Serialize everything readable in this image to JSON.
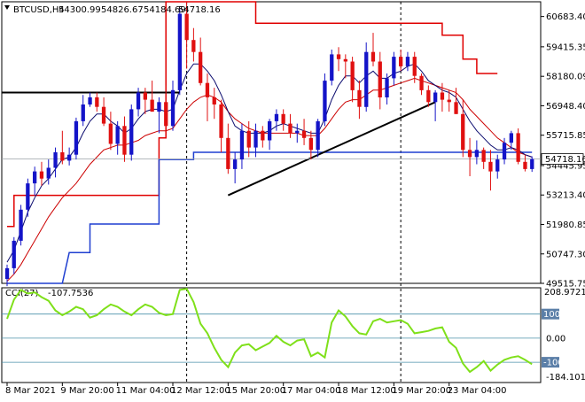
{
  "header": {
    "symbol_label": "BTCUSD,H4",
    "ohlc": [
      "54300.99",
      "54826.67",
      "54184.69",
      "54718.16"
    ]
  },
  "colors": {
    "bull": "#1414c8",
    "bear": "#e01010",
    "ma_fast": "#0b0b6e",
    "ma_slow": "#cc0000",
    "envelope": "#e00000",
    "donchian_low": "#1f3fd0",
    "trendline": "#000000",
    "cci": "#7fe01a",
    "level_line": "#4a90a8",
    "price_tag_bg": "#ffffff"
  },
  "chart_data": {
    "type": "candlestick",
    "title": "",
    "ylim": [
      49515.75,
      61300
    ],
    "y_ticks": [
      "60683.40",
      "59415.35",
      "58180.09",
      "56948.40",
      "55715.85",
      "54445.95",
      "53213.40",
      "51980.85",
      "50747.30",
      "49515.75"
    ],
    "y_tick_values": [
      60683.4,
      59415.35,
      58180.09,
      56948.4,
      55715.85,
      54445.95,
      53213.4,
      51980.85,
      50747.3,
      49515.75
    ],
    "current_price_label": "54718.16",
    "current_price": 54718.16,
    "x_labels": [
      "8 Mar 2021",
      "9 Mar 20:00",
      "11 Mar 04:00",
      "12 Mar 12:00",
      "15 Mar 20:00",
      "17 Mar 04:00",
      "18 Mar 12:00",
      "19 Mar 20:00",
      "23 Mar 04:00"
    ],
    "x_label_bars": [
      0,
      8,
      16,
      24,
      32,
      40,
      48,
      56,
      64
    ],
    "candles": [
      [
        49700,
        50300,
        49400,
        50150
      ],
      [
        50150,
        51450,
        49900,
        51300
      ],
      [
        51300,
        52800,
        51100,
        52600
      ],
      [
        52600,
        53900,
        52300,
        53700
      ],
      [
        53700,
        54400,
        53200,
        54200
      ],
      [
        54200,
        54600,
        53600,
        53900
      ],
      [
        53900,
        54700,
        53650,
        54350
      ],
      [
        54350,
        55200,
        53950,
        55000
      ],
      [
        55000,
        55900,
        54500,
        54650
      ],
      [
        54650,
        55200,
        54450,
        54900
      ],
      [
        54900,
        56450,
        54700,
        56300
      ],
      [
        56300,
        57400,
        56100,
        57000
      ],
      [
        57000,
        57500,
        56900,
        57300
      ],
      [
        57300,
        57500,
        56700,
        56900
      ],
      [
        56900,
        57300,
        56100,
        56200
      ],
      [
        56200,
        56700,
        55100,
        55350
      ],
      [
        55350,
        56300,
        54900,
        56100
      ],
      [
        56100,
        56500,
        54600,
        54900
      ],
      [
        54900,
        57000,
        54650,
        56800
      ],
      [
        56800,
        57700,
        56500,
        57500
      ],
      [
        57500,
        57700,
        56600,
        57200
      ],
      [
        57200,
        58000,
        56700,
        56700
      ],
      [
        56700,
        57300,
        55800,
        57100
      ],
      [
        57100,
        57800,
        56000,
        56100
      ],
      [
        56100,
        58000,
        55900,
        57600
      ],
      [
        57600,
        61000,
        57400,
        60800
      ],
      [
        60800,
        61300,
        58500,
        59700
      ],
      [
        59700,
        60200,
        58800,
        59200
      ],
      [
        59200,
        59800,
        57800,
        57900
      ],
      [
        57900,
        58300,
        56300,
        57300
      ],
      [
        57300,
        57700,
        56400,
        57000
      ],
      [
        57000,
        57200,
        55000,
        55600
      ],
      [
        55600,
        56200,
        54100,
        54300
      ],
      [
        54300,
        55000,
        53700,
        54700
      ],
      [
        54700,
        56200,
        54300,
        55900
      ],
      [
        55900,
        56300,
        54800,
        55200
      ],
      [
        55200,
        56200,
        54800,
        55900
      ],
      [
        55900,
        56100,
        55200,
        55500
      ],
      [
        55500,
        56400,
        55100,
        56300
      ],
      [
        56300,
        56800,
        55900,
        56600
      ],
      [
        56600,
        56800,
        55900,
        56200
      ],
      [
        56200,
        56600,
        55600,
        55800
      ],
      [
        55800,
        56200,
        55400,
        55900
      ],
      [
        55900,
        56400,
        55300,
        55600
      ],
      [
        55600,
        55900,
        54700,
        55100
      ],
      [
        55100,
        56400,
        54800,
        56300
      ],
      [
        56300,
        58300,
        56100,
        58000
      ],
      [
        58000,
        59300,
        57800,
        59100
      ],
      [
        59100,
        59400,
        58400,
        58900
      ],
      [
        58900,
        59100,
        58100,
        58800
      ],
      [
        58800,
        59000,
        57100,
        57600
      ],
      [
        57600,
        58000,
        56400,
        56900
      ],
      [
        56900,
        59600,
        56700,
        59200
      ],
      [
        59200,
        60000,
        58600,
        58800
      ],
      [
        58800,
        59200,
        56800,
        57300
      ],
      [
        57300,
        58300,
        57000,
        58100
      ],
      [
        58100,
        59200,
        57800,
        59000
      ],
      [
        59000,
        59300,
        58400,
        58600
      ],
      [
        58600,
        59200,
        58400,
        59000
      ],
      [
        59000,
        59200,
        57900,
        58200
      ],
      [
        58200,
        58300,
        57400,
        57600
      ],
      [
        57600,
        57800,
        56900,
        57100
      ],
      [
        57100,
        57600,
        56300,
        57500
      ],
      [
        57500,
        57900,
        56700,
        57200
      ],
      [
        57200,
        57600,
        56700,
        57100
      ],
      [
        57100,
        57700,
        56600,
        56600
      ],
      [
        56600,
        57200,
        54800,
        55100
      ],
      [
        55100,
        55600,
        54000,
        54800
      ],
      [
        54800,
        55500,
        54500,
        55100
      ],
      [
        55100,
        55200,
        54300,
        54600
      ],
      [
        54600,
        55100,
        53400,
        54200
      ],
      [
        54200,
        54900,
        53900,
        54700
      ],
      [
        54700,
        55600,
        54500,
        55400
      ],
      [
        55400,
        55900,
        55100,
        55800
      ],
      [
        55800,
        56000,
        54500,
        54600
      ],
      [
        54600,
        54900,
        54200,
        54300
      ],
      [
        54300,
        54830,
        54180,
        54718
      ]
    ],
    "ma_fast": [
      50400,
      50900,
      51700,
      52500,
      53100,
      53600,
      53900,
      54300,
      54700,
      54800,
      55200,
      55800,
      56300,
      56600,
      56600,
      56300,
      56100,
      55800,
      56000,
      56400,
      56700,
      56800,
      56800,
      56700,
      56800,
      57600,
      58300,
      58700,
      58700,
      58400,
      58000,
      57400,
      56700,
      56100,
      55900,
      55800,
      55800,
      55800,
      55900,
      56100,
      56200,
      56100,
      56000,
      55900,
      55800,
      55800,
      56400,
      57200,
      57800,
      58200,
      58200,
      57900,
      58200,
      58400,
      58100,
      58100,
      58300,
      58400,
      58600,
      58700,
      58400,
      58000,
      57800,
      57600,
      57500,
      57300,
      56800,
      56300,
      55900,
      55600,
      55300,
      55100,
      55100,
      55200,
      55100,
      54900,
      54800
    ],
    "ma_slow": [
      49600,
      49900,
      50300,
      50800,
      51300,
      51800,
      52300,
      52700,
      53100,
      53400,
      53700,
      54100,
      54500,
      54800,
      55100,
      55200,
      55300,
      55300,
      55400,
      55500,
      55700,
      55800,
      55900,
      55900,
      56000,
      56400,
      56800,
      57100,
      57300,
      57400,
      57300,
      57100,
      56700,
      56400,
      56200,
      56000,
      55900,
      55800,
      55800,
      55800,
      55800,
      55800,
      55800,
      55700,
      55700,
      55700,
      56000,
      56400,
      56800,
      57100,
      57200,
      57200,
      57400,
      57600,
      57600,
      57700,
      57800,
      57900,
      58000,
      58100,
      58000,
      57900,
      57800,
      57700,
      57600,
      57500,
      57200,
      56800,
      56500,
      56200,
      55900,
      55600,
      55400,
      55200,
      55000,
      54900,
      54800
    ],
    "envelope_red": [
      [
        0,
        51900
      ],
      [
        1,
        51900
      ],
      [
        1,
        53200
      ],
      [
        22,
        53200
      ],
      [
        22,
        55600
      ],
      [
        23,
        55600
      ],
      [
        23,
        61300
      ],
      [
        36,
        61300
      ],
      [
        36,
        60400
      ],
      [
        63,
        60400
      ],
      [
        63,
        59900
      ],
      [
        66,
        59900
      ],
      [
        66,
        58900
      ],
      [
        68,
        58900
      ],
      [
        68,
        58300
      ],
      [
        71,
        58300
      ]
    ],
    "donchian_blue": [
      [
        0,
        49515
      ],
      [
        8,
        49515
      ],
      [
        9,
        50800
      ],
      [
        12,
        50800
      ],
      [
        12,
        52000
      ],
      [
        22,
        52000
      ],
      [
        22,
        54700
      ],
      [
        27,
        54700
      ],
      [
        27,
        55000
      ],
      [
        76,
        55000
      ]
    ],
    "horizontal_line": {
      "price": 57500,
      "from_bar": 0,
      "to_bar": 25
    },
    "trendlines": [
      {
        "from_bar": 32,
        "from_price": 53200,
        "to_bar": 62,
        "to_price": 57100
      }
    ],
    "vertical_marks": [
      26,
      57
    ],
    "cci": {
      "label": "CCI(27)",
      "value_label": "-107.7536",
      "ylim": [
        -184.1014,
        208.9721
      ],
      "top_label": "208.9721",
      "bottom_label": "-184.1014",
      "levels": [
        100,
        0,
        -100
      ],
      "level_labels": [
        "100",
        "0.00",
        "-100"
      ],
      "values": [
        80,
        160,
        200,
        185,
        190,
        170,
        155,
        115,
        95,
        110,
        130,
        120,
        85,
        95,
        120,
        140,
        130,
        110,
        95,
        120,
        140,
        130,
        105,
        95,
        100,
        200,
        205,
        150,
        60,
        20,
        -40,
        -90,
        -120,
        -60,
        -30,
        -25,
        -50,
        -35,
        -20,
        10,
        -15,
        -30,
        -10,
        -5,
        -75,
        -60,
        -80,
        65,
        115,
        90,
        50,
        20,
        15,
        70,
        80,
        65,
        70,
        75,
        60,
        20,
        25,
        30,
        40,
        45,
        -15,
        -40,
        -105,
        -140,
        -120,
        -95,
        -135,
        -110,
        -90,
        -80,
        -75,
        -90,
        -108
      ]
    }
  }
}
